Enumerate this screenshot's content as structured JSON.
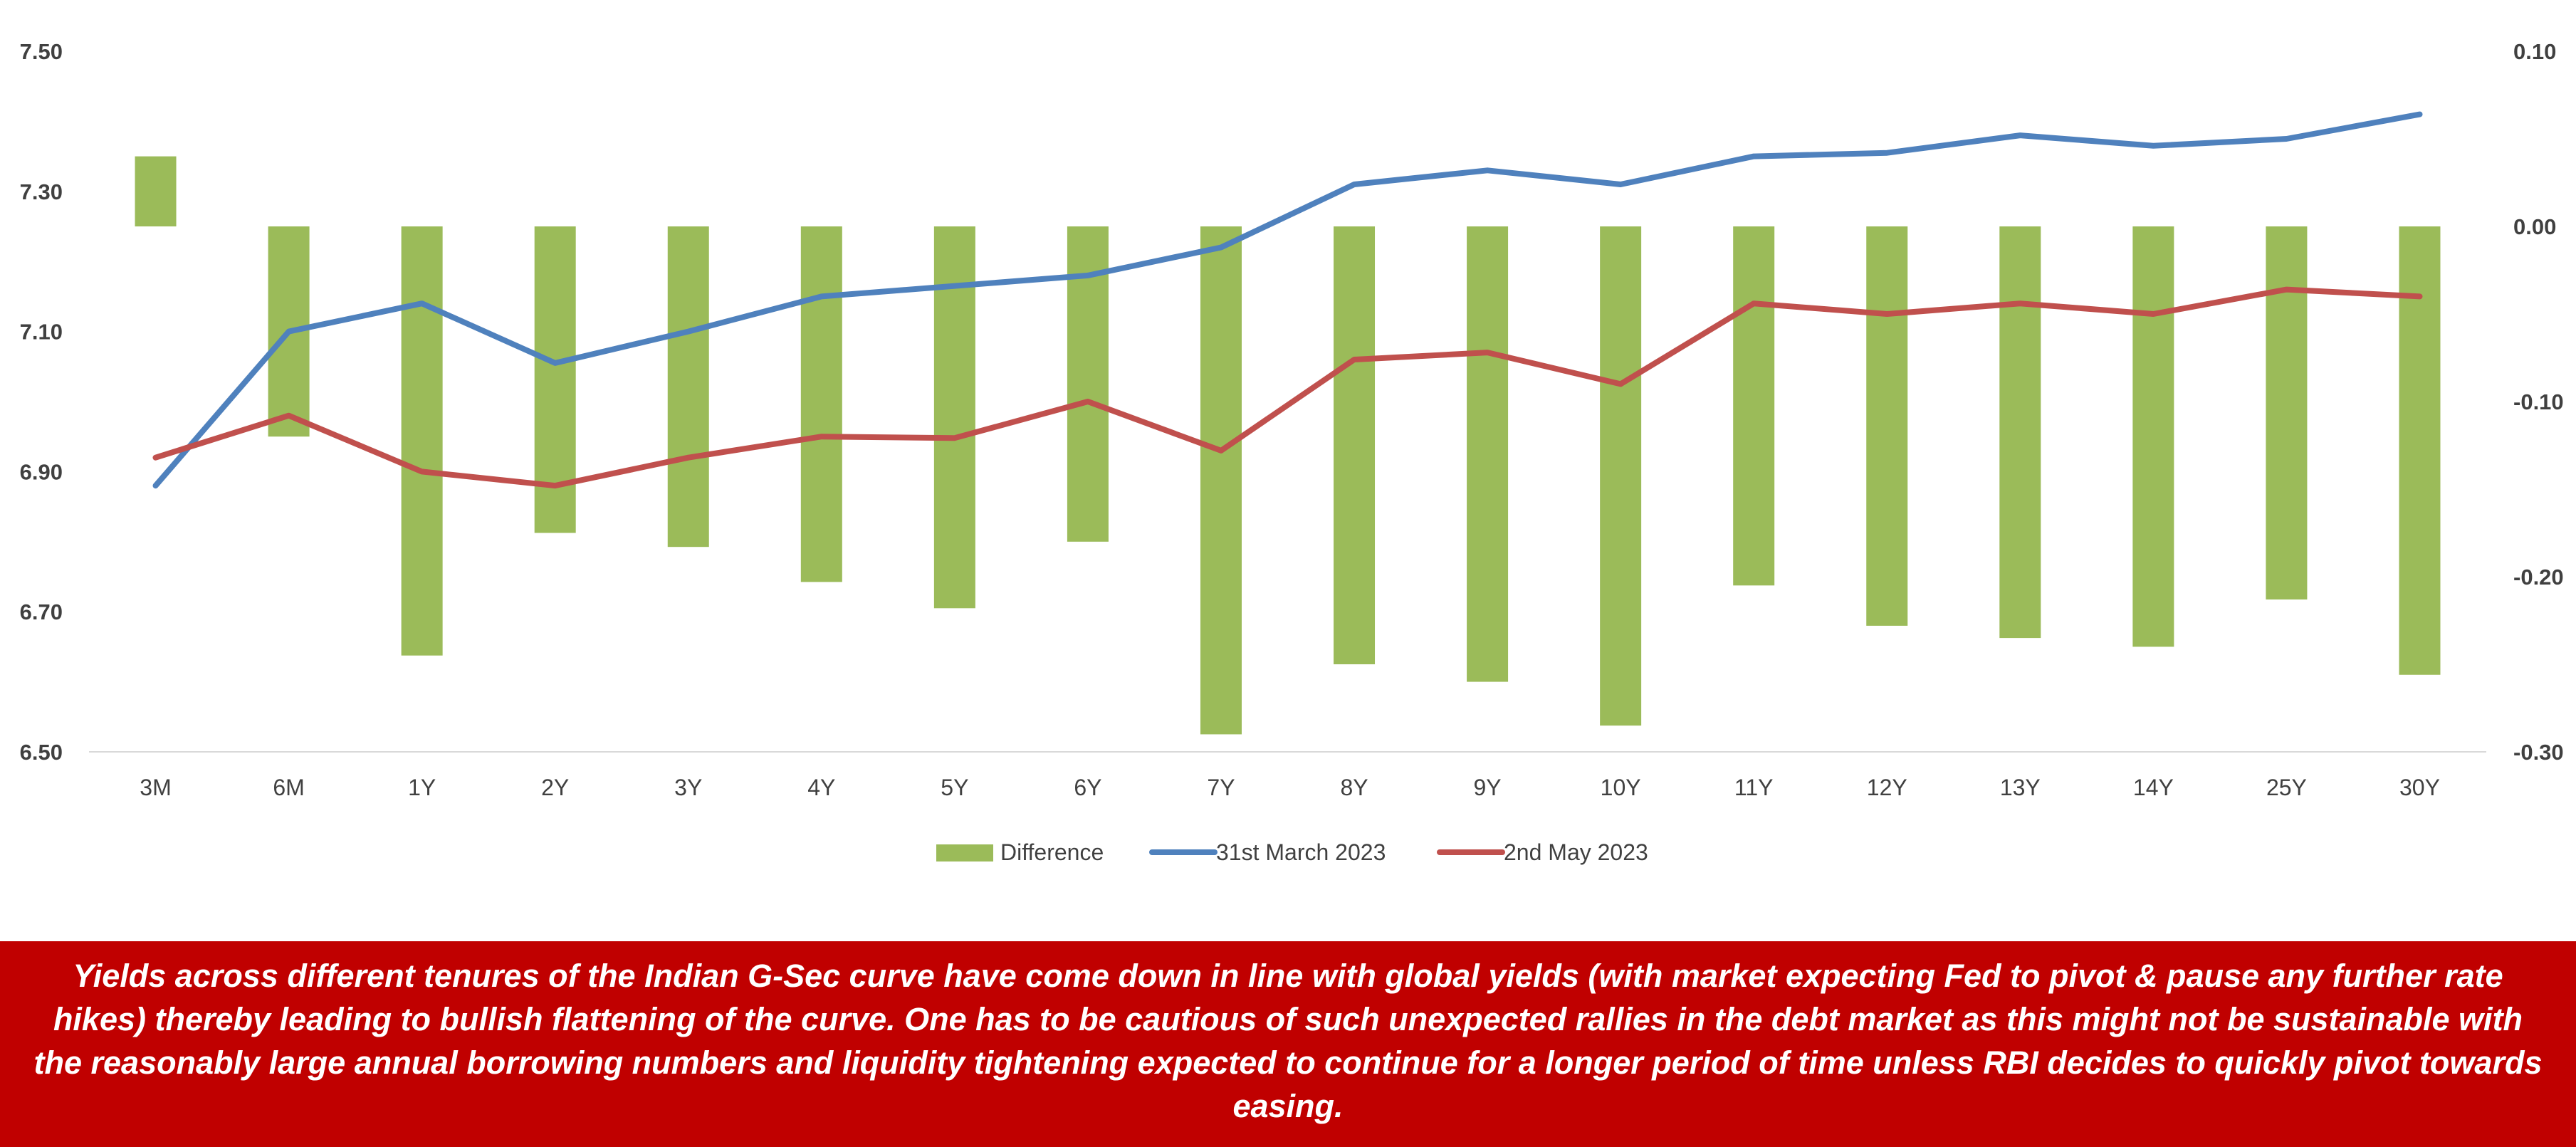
{
  "chart_data": {
    "type": "bar",
    "categories": [
      "3M",
      "6M",
      "1Y",
      "2Y",
      "3Y",
      "4Y",
      "5Y",
      "6Y",
      "7Y",
      "8Y",
      "9Y",
      "10Y",
      "11Y",
      "12Y",
      "13Y",
      "14Y",
      "25Y",
      "30Y"
    ],
    "left_axis": {
      "ylim": [
        6.5,
        7.5
      ],
      "ticks": [
        "7.50",
        "7.30",
        "7.10",
        "6.90",
        "6.70",
        "6.50"
      ]
    },
    "right_axis": {
      "ylim": [
        -0.3,
        0.1
      ],
      "ticks": [
        "0.10",
        "0.00",
        "-0.10",
        "-0.20",
        "-0.30"
      ]
    },
    "grid": false,
    "legend_position": "bottom",
    "series": [
      {
        "name": "Difference",
        "type": "bar",
        "axis": "right",
        "color": "#9bbb59",
        "values": [
          0.04,
          -0.12,
          -0.245,
          -0.175,
          -0.183,
          -0.203,
          -0.218,
          -0.18,
          -0.29,
          -0.25,
          -0.26,
          -0.285,
          -0.205,
          -0.228,
          -0.235,
          -0.24,
          -0.213,
          -0.256
        ]
      },
      {
        "name": "31st March 2023",
        "type": "line",
        "axis": "left",
        "color": "#4f81bd",
        "values": [
          6.88,
          7.1,
          7.14,
          7.055,
          7.1,
          7.15,
          7.165,
          7.18,
          7.22,
          7.31,
          7.33,
          7.31,
          7.35,
          7.355,
          7.38,
          7.365,
          7.375,
          7.41
        ]
      },
      {
        "name": "2nd May 2023",
        "type": "line",
        "axis": "left",
        "color": "#c0504d",
        "values": [
          6.92,
          6.98,
          6.9,
          6.88,
          6.92,
          6.95,
          6.948,
          7.0,
          6.93,
          7.06,
          7.07,
          7.025,
          7.14,
          7.125,
          7.14,
          7.125,
          7.16,
          7.15
        ]
      }
    ]
  },
  "note": "Yields across different tenures of the Indian G-Sec curve have come down in line with global yields (with market expecting Fed to pivot & pause any further rate hikes) thereby leading to bullish flattening of the curve. One has to be cautious of such unexpected rallies in the debt market as this might not be sustainable with the reasonably large annual borrowing numbers and liquidity tightening expected to continue for a longer period of time unless RBI decides to quickly pivot towards easing.",
  "colors": {
    "banner_bg": "#c00000",
    "banner_text": "#ffffff",
    "axis_line": "#d9d9d9"
  }
}
